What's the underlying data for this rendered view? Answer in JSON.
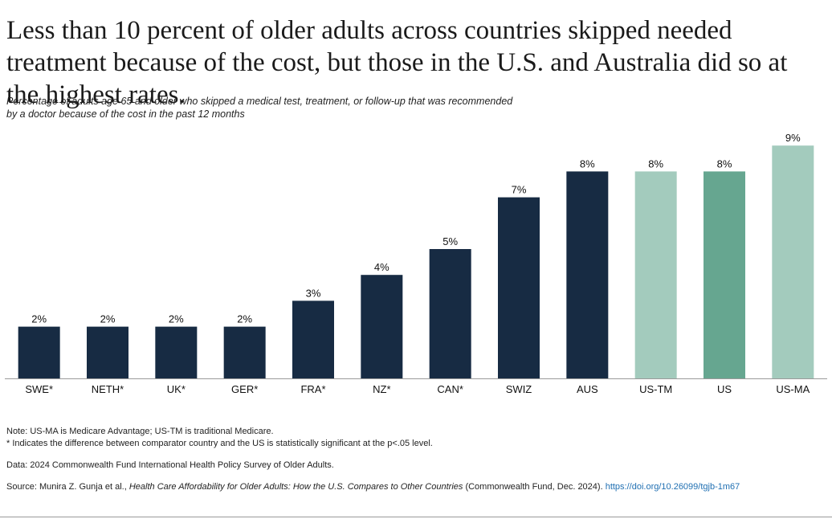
{
  "title": "Less than 10 percent of older adults across countries skipped needed treatment because of the cost, but those in the U.S. and Australia did so at the highest rates.",
  "subtitle": "Percentage of adults age 65 and older who skipped a medical test, treatment, or follow-up that was recommended by a doctor because of the cost in the past 12 months",
  "colors": {
    "comparator": "#172b43",
    "us_tm": "#a3cbbd",
    "us": "#66a690",
    "us_ma": "#a3cbbd",
    "baseline": "#9a9a9a"
  },
  "chart_data": {
    "type": "bar",
    "categories": [
      "SWE*",
      "NETH*",
      "UK*",
      "GER*",
      "FRA*",
      "NZ*",
      "CAN*",
      "SWIZ",
      "AUS",
      "US-TM",
      "US",
      "US-MA"
    ],
    "values": [
      2,
      2,
      2,
      2,
      3,
      4,
      5,
      7,
      8,
      8,
      8,
      9
    ],
    "data_labels": [
      "2%",
      "2%",
      "2%",
      "2%",
      "3%",
      "4%",
      "5%",
      "7%",
      "8%",
      "8%",
      "8%",
      "9%"
    ],
    "bar_color_keys": [
      "comparator",
      "comparator",
      "comparator",
      "comparator",
      "comparator",
      "comparator",
      "comparator",
      "comparator",
      "comparator",
      "us_tm",
      "us",
      "us_ma"
    ],
    "ylim": [
      0,
      9
    ],
    "title": "",
    "xlabel": "",
    "ylabel": ""
  },
  "notes": {
    "note1": "Note: US-MA is Medicare Advantage; US-TM is traditional Medicare.",
    "note2": "* Indicates the difference between comparator country and the US is statistically significant at the p<.05 level.",
    "data": "Data: 2024 Commonwealth Fund International Health Policy Survey of Older Adults.",
    "source_prefix": "Source: Munira Z. Gunja et al., ",
    "source_title": "Health Care Affordability for Older Adults: How the U.S. Compares to Other Countries",
    "source_suffix": " (Commonwealth Fund, Dec. 2024). ",
    "source_link": "https://doi.org/10.26099/tgjb-1m67"
  }
}
